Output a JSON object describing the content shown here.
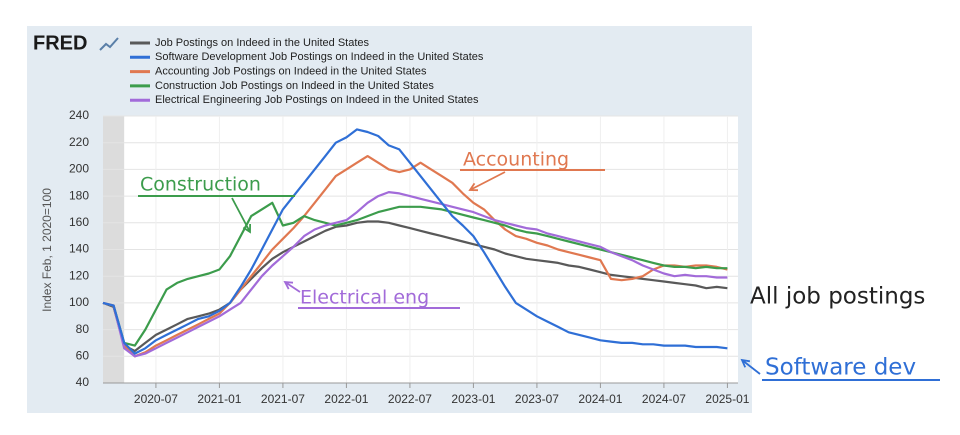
{
  "chart_data": {
    "type": "line",
    "source": "FRED",
    "y_label": "Index Feb, 1 2020=100",
    "x": [
      "2020-02",
      "2020-03",
      "2020-04",
      "2020-05",
      "2020-06",
      "2020-07",
      "2020-08",
      "2020-09",
      "2020-10",
      "2020-11",
      "2020-12",
      "2021-01",
      "2021-02",
      "2021-03",
      "2021-04",
      "2021-05",
      "2021-06",
      "2021-07",
      "2021-08",
      "2021-09",
      "2021-10",
      "2021-11",
      "2021-12",
      "2022-01",
      "2022-02",
      "2022-03",
      "2022-04",
      "2022-05",
      "2022-06",
      "2022-07",
      "2022-08",
      "2022-09",
      "2022-10",
      "2022-11",
      "2022-12",
      "2023-01",
      "2023-02",
      "2023-03",
      "2023-04",
      "2023-05",
      "2023-06",
      "2023-07",
      "2023-08",
      "2023-09",
      "2023-10",
      "2023-11",
      "2023-12",
      "2024-01",
      "2024-02",
      "2024-03",
      "2024-04",
      "2024-05",
      "2024-06",
      "2024-07",
      "2024-08",
      "2024-09",
      "2024-10",
      "2024-11",
      "2024-12",
      "2025-01"
    ],
    "xlim": [
      "2020-02",
      "2025-02"
    ],
    "xticks": [
      "2020-07",
      "2021-01",
      "2021-07",
      "2022-01",
      "2022-07",
      "2023-01",
      "2023-07",
      "2024-01",
      "2024-07",
      "2025-01"
    ],
    "ylim": [
      40,
      240
    ],
    "yticks": [
      40,
      60,
      80,
      100,
      120,
      140,
      160,
      180,
      200,
      220,
      240
    ],
    "grid": true,
    "shaded_range": [
      "2020-02",
      "2020-04"
    ],
    "series": [
      {
        "name": "Job Postings on Indeed in the United States",
        "color": "#595959",
        "values": [
          100,
          97,
          68,
          64,
          70,
          76,
          80,
          84,
          88,
          90,
          92,
          95,
          100,
          110,
          118,
          126,
          133,
          138,
          142,
          146,
          150,
          154,
          157,
          158,
          160,
          161,
          161,
          160,
          158,
          156,
          154,
          152,
          150,
          148,
          146,
          144,
          142,
          140,
          137,
          135,
          133,
          132,
          131,
          130,
          128,
          127,
          125,
          123,
          121,
          120,
          119,
          118,
          117,
          116,
          115,
          114,
          113,
          111,
          112,
          111
        ]
      },
      {
        "name": "Software Development Job Postings on Indeed in the United States",
        "color": "#2f6fd6",
        "values": [
          100,
          98,
          70,
          62,
          66,
          72,
          76,
          80,
          84,
          88,
          90,
          94,
          100,
          112,
          125,
          140,
          155,
          170,
          180,
          190,
          200,
          210,
          220,
          224,
          230,
          228,
          225,
          218,
          215,
          205,
          195,
          185,
          175,
          165,
          158,
          150,
          138,
          125,
          112,
          100,
          95,
          90,
          86,
          82,
          78,
          76,
          74,
          72,
          71,
          70,
          70,
          69,
          69,
          68,
          68,
          68,
          67,
          67,
          67,
          66
        ]
      },
      {
        "name": "Accounting Job Postings on Indeed in the United States",
        "color": "#e07850",
        "values": [
          100,
          98,
          68,
          60,
          63,
          68,
          72,
          76,
          80,
          84,
          88,
          92,
          100,
          110,
          120,
          130,
          140,
          148,
          156,
          165,
          175,
          185,
          195,
          200,
          205,
          210,
          205,
          200,
          198,
          200,
          205,
          200,
          195,
          190,
          182,
          175,
          170,
          162,
          155,
          150,
          148,
          145,
          143,
          140,
          138,
          136,
          134,
          132,
          118,
          117,
          118,
          120,
          125,
          128,
          128,
          127,
          128,
          128,
          127,
          125
        ]
      },
      {
        "name": "Construction Job Postings on Indeed in the United States",
        "color": "#3c9c4c",
        "values": [
          100,
          98,
          70,
          68,
          80,
          95,
          110,
          115,
          118,
          120,
          122,
          125,
          135,
          150,
          165,
          170,
          175,
          158,
          160,
          165,
          162,
          160,
          158,
          160,
          162,
          165,
          168,
          170,
          172,
          172,
          172,
          171,
          170,
          168,
          166,
          164,
          162,
          160,
          158,
          155,
          153,
          152,
          150,
          148,
          146,
          144,
          142,
          140,
          138,
          136,
          134,
          132,
          130,
          128,
          127,
          127,
          126,
          127,
          126,
          126
        ]
      },
      {
        "name": "Electrical Engineering Job Postings on Indeed in the United States",
        "color": "#a26bd9",
        "values": [
          100,
          98,
          66,
          60,
          62,
          66,
          70,
          74,
          78,
          82,
          86,
          90,
          95,
          100,
          110,
          120,
          128,
          135,
          142,
          150,
          155,
          158,
          160,
          162,
          168,
          175,
          180,
          183,
          182,
          180,
          178,
          176,
          174,
          172,
          170,
          168,
          165,
          162,
          160,
          158,
          156,
          155,
          152,
          150,
          148,
          146,
          144,
          142,
          138,
          135,
          132,
          128,
          125,
          122,
          120,
          121,
          120,
          120,
          119,
          119
        ]
      }
    ],
    "annotations": [
      {
        "text": "Construction",
        "color": "#3c9c4c"
      },
      {
        "text": "Accounting",
        "color": "#e07850"
      },
      {
        "text": "Electrical eng",
        "color": "#a26bd9"
      },
      {
        "text": "All job postings",
        "color": "#222222"
      },
      {
        "text": "Software dev",
        "color": "#2f6fd6"
      }
    ]
  }
}
